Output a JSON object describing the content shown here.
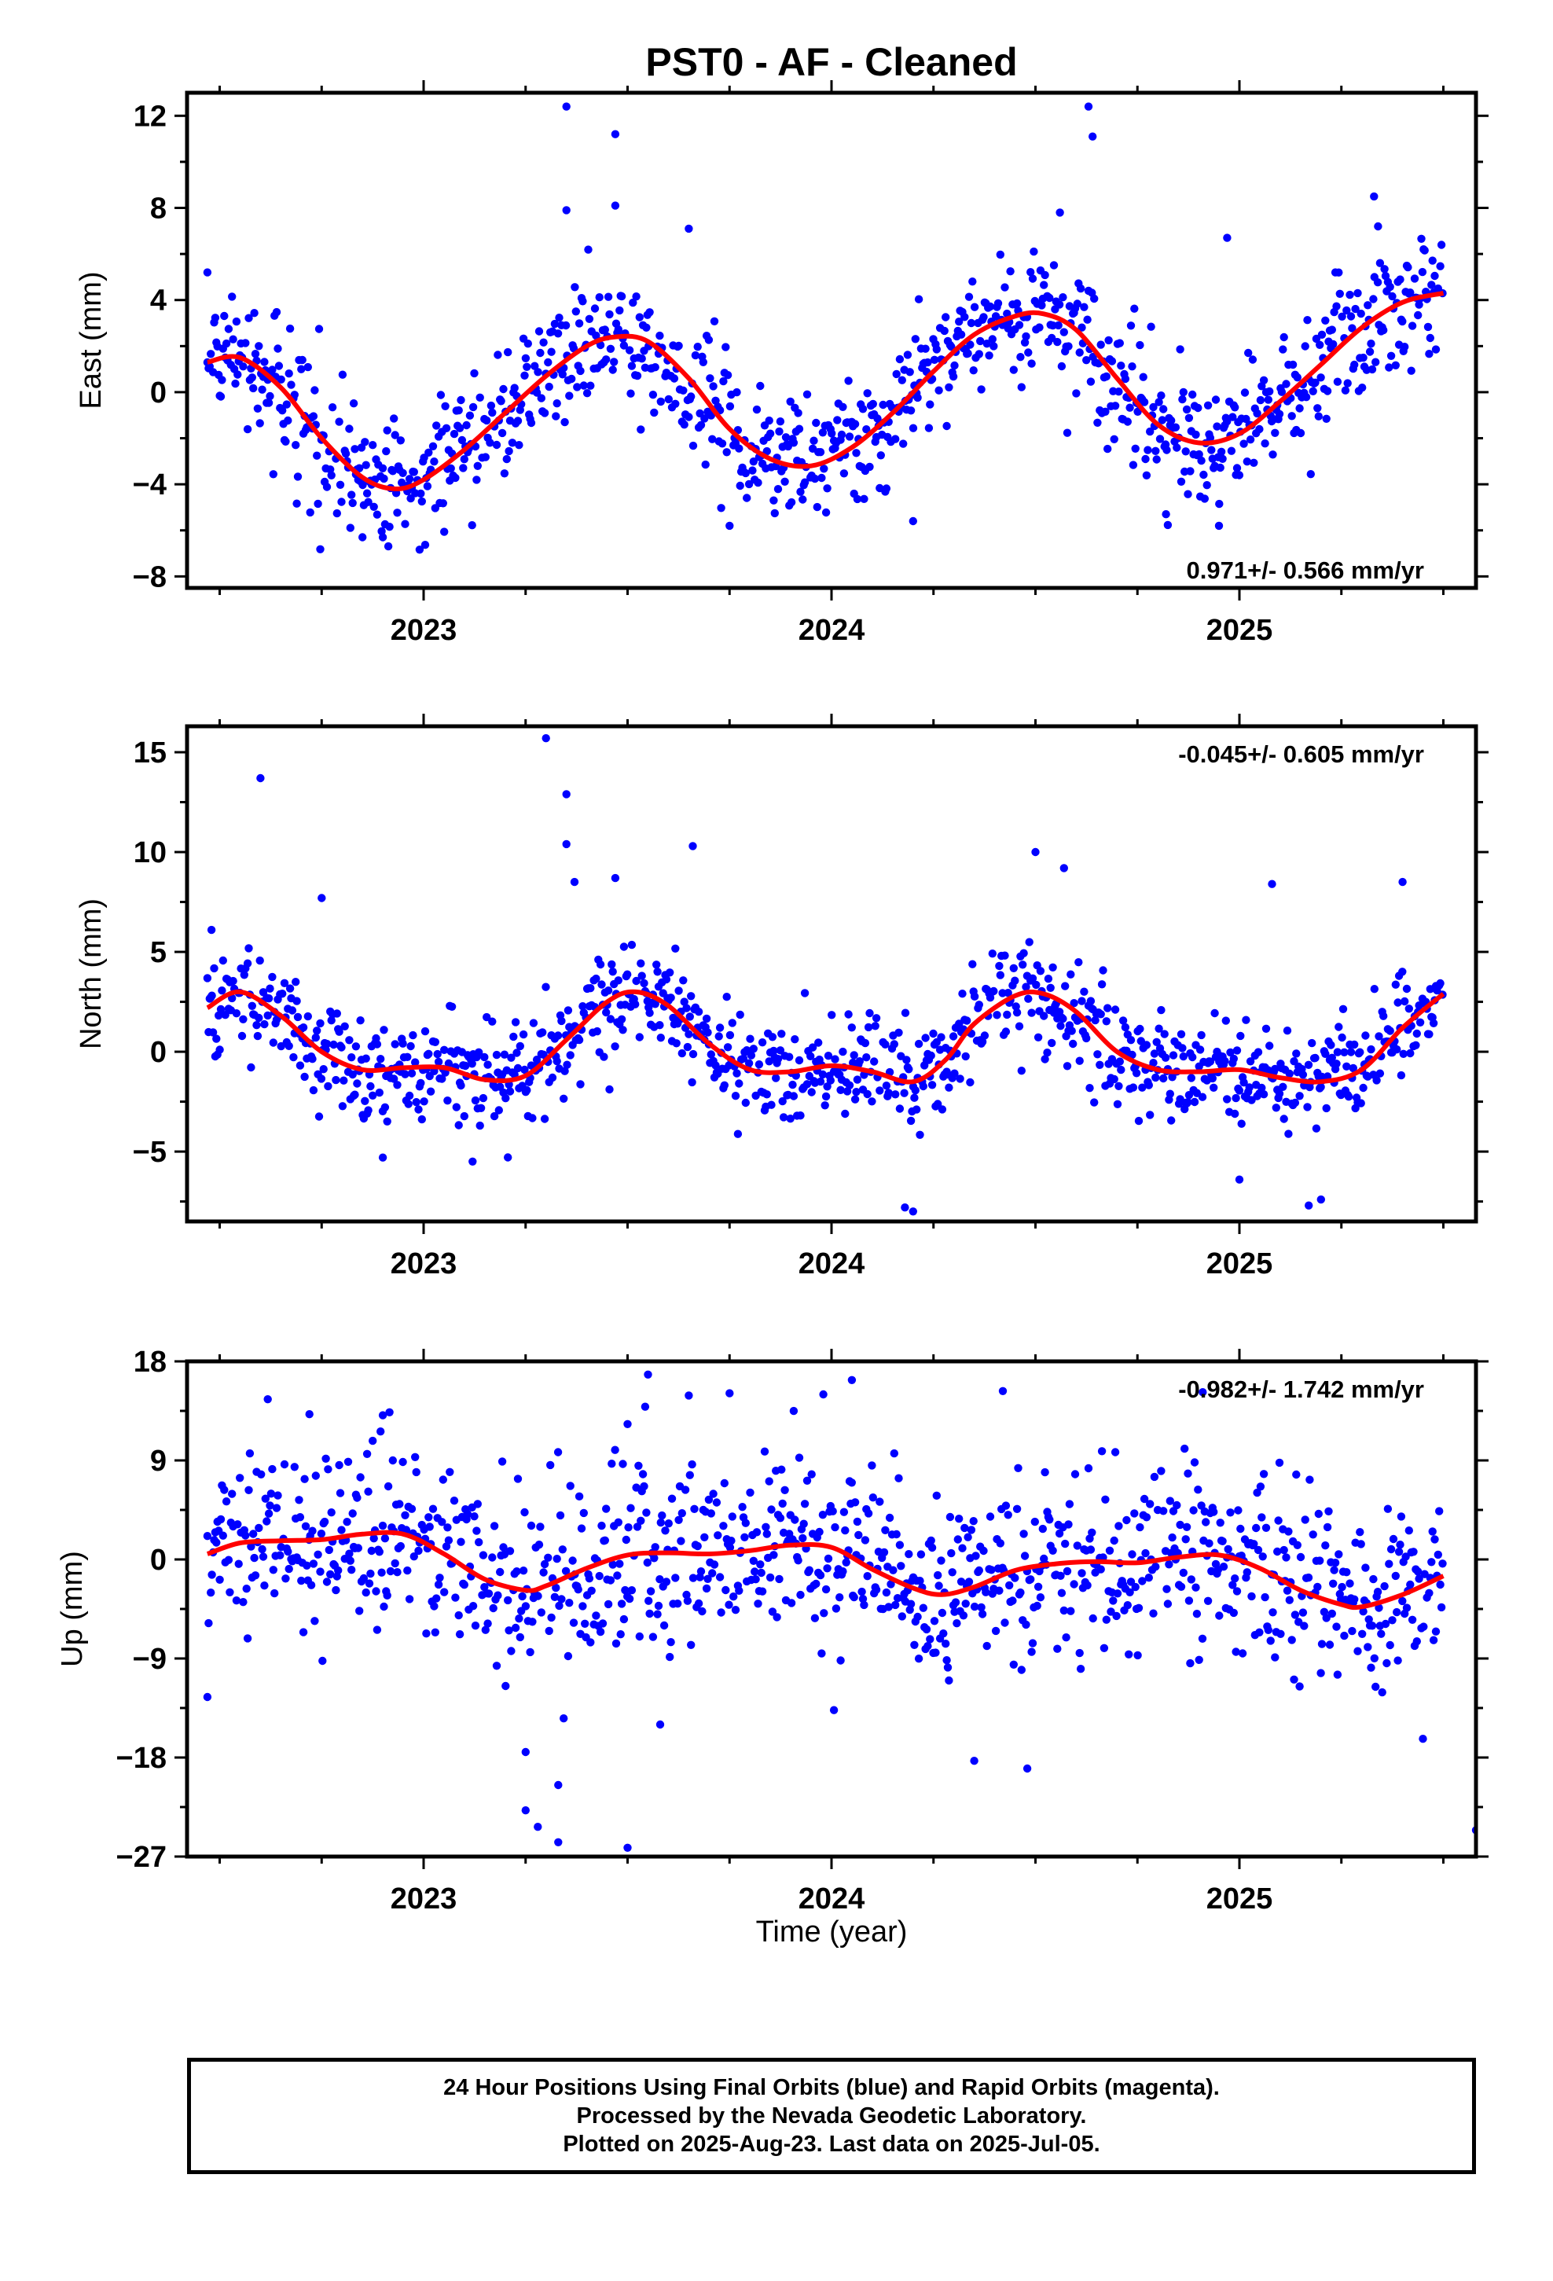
{
  "title": "PST0  - AF - Cleaned",
  "xlabel": "Time (year)",
  "colors": {
    "points": "#0000ff",
    "fit": "#ff0000",
    "axes": "#000000"
  },
  "footer": {
    "line1": "24 Hour Positions Using Final Orbits (blue) and Rapid Orbits (magenta).",
    "line2": "Processed by the Nevada Geodetic Laboratory.",
    "line3": "Plotted on 2025-Aug-23. Last data on 2025-Jul-05."
  },
  "chart_data": [
    {
      "type": "scatter",
      "ylabel": "East (mm)",
      "rate_label": "0.971+/- 0.566 mm/yr",
      "rate_position": "bottom-right",
      "xlim": [
        2022.42,
        2025.58
      ],
      "ylim": [
        -8.5,
        13
      ],
      "xticks": [
        2023,
        2024,
        2025
      ],
      "xtick_labels": [
        "2023",
        "2024",
        "2025"
      ],
      "yticks": [
        -8,
        -4,
        0,
        4,
        8,
        12
      ],
      "ytick_labels": [
        "−8",
        "−4",
        "0",
        "4",
        "8",
        "12"
      ],
      "fit": {
        "x": [
          2022.47,
          2022.55,
          2022.65,
          2022.75,
          2022.85,
          2022.93,
          2023.0,
          2023.1,
          2023.2,
          2023.3,
          2023.4,
          2023.47,
          2023.55,
          2023.65,
          2023.75,
          2023.85,
          2023.95,
          2024.05,
          2024.15,
          2024.25,
          2024.35,
          2024.45,
          2024.52,
          2024.6,
          2024.7,
          2024.8,
          2024.9,
          2025.0,
          2025.1,
          2025.2,
          2025.3,
          2025.4,
          2025.5
        ],
        "y": [
          1.3,
          1.5,
          0.2,
          -2.0,
          -3.7,
          -4.2,
          -3.8,
          -2.5,
          -0.9,
          0.7,
          2.0,
          2.4,
          2.2,
          0.6,
          -1.6,
          -2.9,
          -3.2,
          -2.4,
          -0.9,
          0.9,
          2.5,
          3.3,
          3.4,
          2.7,
          0.6,
          -1.4,
          -2.2,
          -1.8,
          -0.4,
          1.2,
          2.8,
          3.9,
          4.3
        ]
      },
      "noise_scale": 1.4,
      "outliers": [
        [
          2022.47,
          5.2
        ],
        [
          2023.35,
          12.4
        ],
        [
          2023.47,
          11.2
        ],
        [
          2023.47,
          8.1
        ],
        [
          2023.65,
          7.1
        ],
        [
          2023.35,
          7.9
        ],
        [
          2024.63,
          12.4
        ],
        [
          2024.64,
          11.1
        ],
        [
          2024.56,
          7.8
        ],
        [
          2024.97,
          6.7
        ],
        [
          2025.33,
          8.5
        ],
        [
          2025.34,
          7.2
        ],
        [
          2024.95,
          -5.8
        ],
        [
          2024.82,
          -5.3
        ],
        [
          2023.75,
          -5.8
        ],
        [
          2022.85,
          -6.3
        ],
        [
          2022.9,
          -6.3
        ],
        [
          2024.2,
          -5.6
        ]
      ]
    },
    {
      "type": "scatter",
      "ylabel": "North (mm)",
      "rate_label": "-0.045+/- 0.605 mm/yr",
      "rate_position": "top-right",
      "xlim": [
        2022.42,
        2025.58
      ],
      "ylim": [
        -8.5,
        16.3
      ],
      "xticks": [
        2023,
        2024,
        2025
      ],
      "xtick_labels": [
        "2023",
        "2024",
        "2025"
      ],
      "yticks": [
        -5,
        0,
        5,
        10,
        15
      ],
      "ytick_labels": [
        "−5",
        "0",
        "5",
        "10",
        "15"
      ],
      "fit": {
        "x": [
          2022.47,
          2022.55,
          2022.65,
          2022.75,
          2022.85,
          2022.95,
          2023.05,
          2023.15,
          2023.25,
          2023.35,
          2023.45,
          2023.52,
          2023.6,
          2023.7,
          2023.8,
          2023.9,
          2024.0,
          2024.1,
          2024.2,
          2024.28,
          2024.35,
          2024.45,
          2024.52,
          2024.6,
          2024.7,
          2024.8,
          2024.9,
          2025.0,
          2025.1,
          2025.2,
          2025.3,
          2025.4,
          2025.5
        ],
        "y": [
          2.2,
          3.0,
          1.8,
          0.0,
          -0.9,
          -0.8,
          -0.8,
          -1.4,
          -1.2,
          0.6,
          2.5,
          3.0,
          2.3,
          0.4,
          -0.9,
          -1.0,
          -0.7,
          -1.0,
          -1.5,
          -0.4,
          1.4,
          2.8,
          2.9,
          2.0,
          0.0,
          -0.9,
          -1.0,
          -0.9,
          -1.3,
          -1.5,
          -0.9,
          1.2,
          2.9
        ]
      },
      "noise_scale": 1.3,
      "outliers": [
        [
          2022.6,
          13.7
        ],
        [
          2023.3,
          15.7
        ],
        [
          2023.35,
          12.9
        ],
        [
          2023.35,
          10.4
        ],
        [
          2023.47,
          8.7
        ],
        [
          2023.66,
          10.3
        ],
        [
          2023.37,
          8.5
        ],
        [
          2024.5,
          10.0
        ],
        [
          2024.57,
          9.2
        ],
        [
          2025.08,
          8.4
        ],
        [
          2025.4,
          8.5
        ],
        [
          2022.48,
          6.1
        ],
        [
          2022.75,
          7.7
        ],
        [
          2024.2,
          -8.0
        ],
        [
          2024.18,
          -7.8
        ],
        [
          2025.17,
          -7.7
        ],
        [
          2025.2,
          -7.4
        ],
        [
          2025.0,
          -6.4
        ],
        [
          2022.9,
          -5.3
        ],
        [
          2023.12,
          -5.5
        ]
      ]
    },
    {
      "type": "scatter",
      "ylabel": "Up (mm)",
      "rate_label": "-0.982+/- 1.742 mm/yr",
      "rate_position": "top-right",
      "xlim": [
        2022.42,
        2025.58
      ],
      "ylim": [
        -27,
        18
      ],
      "xticks": [
        2023,
        2024,
        2025
      ],
      "xtick_labels": [
        "2023",
        "2024",
        "2025"
      ],
      "yticks": [
        -27,
        -18,
        -9,
        0,
        9,
        18
      ],
      "ytick_labels": [
        "−27",
        "−18",
        "−9",
        "0",
        "9",
        "18"
      ],
      "fit": {
        "x": [
          2022.47,
          2022.55,
          2022.65,
          2022.75,
          2022.85,
          2022.95,
          2023.05,
          2023.15,
          2023.25,
          2023.3,
          2023.4,
          2023.5,
          2023.6,
          2023.7,
          2023.8,
          2023.9,
          2024.0,
          2024.1,
          2024.2,
          2024.27,
          2024.35,
          2024.45,
          2024.55,
          2024.65,
          2024.75,
          2024.85,
          2024.95,
          2025.05,
          2025.15,
          2025.25,
          2025.3,
          2025.4,
          2025.5
        ],
        "y": [
          0.5,
          1.5,
          1.7,
          1.8,
          2.3,
          2.3,
          0.5,
          -1.8,
          -2.8,
          -2.4,
          -0.8,
          0.4,
          0.6,
          0.5,
          0.8,
          1.3,
          1.1,
          -0.9,
          -2.6,
          -3.2,
          -2.5,
          -1.0,
          -0.4,
          -0.2,
          -0.3,
          0.2,
          0.4,
          -0.8,
          -2.8,
          -4.1,
          -4.3,
          -3.2,
          -1.5
        ]
      },
      "noise_scale": 4.2,
      "outliers": [
        [
          2022.47,
          -12.5
        ],
        [
          2023.25,
          -17.5
        ],
        [
          2023.25,
          -22.8
        ],
        [
          2023.28,
          -24.3
        ],
        [
          2023.33,
          -25.7
        ],
        [
          2023.33,
          -20.5
        ],
        [
          2023.5,
          -26.2
        ],
        [
          2023.58,
          -15.0
        ],
        [
          2023.5,
          12.3
        ],
        [
          2023.55,
          16.8
        ],
        [
          2023.65,
          14.9
        ],
        [
          2023.75,
          15.1
        ],
        [
          2023.98,
          15.0
        ],
        [
          2024.05,
          16.3
        ],
        [
          2024.42,
          15.3
        ],
        [
          2024.35,
          -18.3
        ],
        [
          2024.48,
          -19.0
        ],
        [
          2024.91,
          15.2
        ],
        [
          2025.58,
          -24.6
        ],
        [
          2025.45,
          -16.3
        ],
        [
          2022.72,
          13.2
        ],
        [
          2022.9,
          13.1
        ]
      ]
    }
  ]
}
